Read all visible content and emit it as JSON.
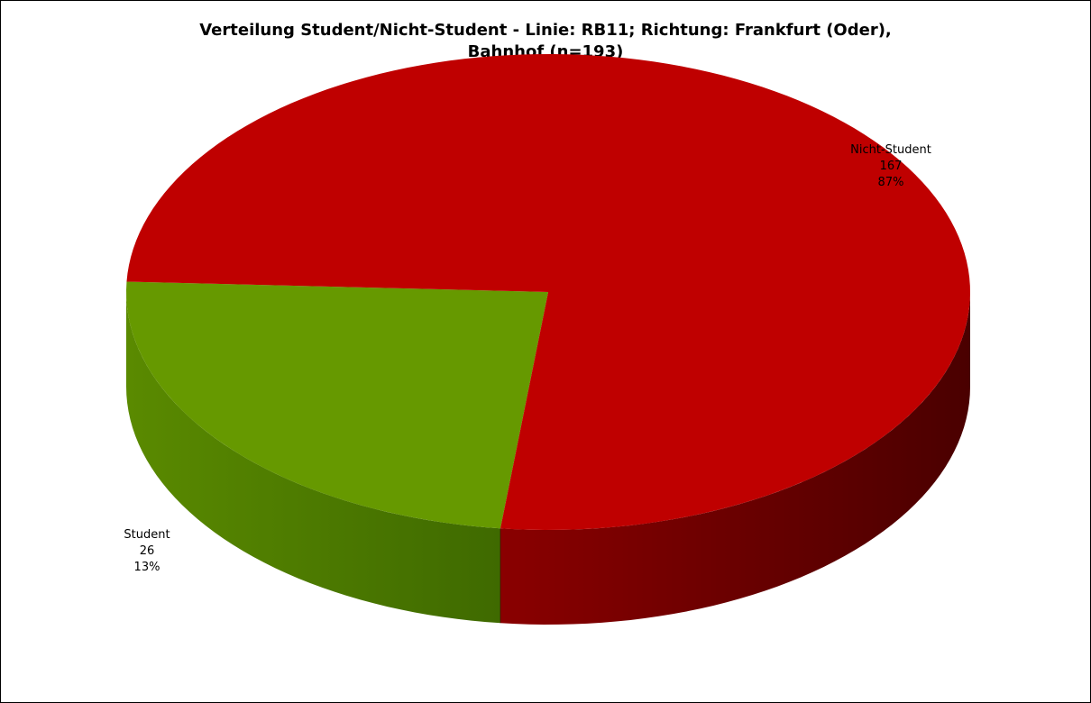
{
  "chart_data": {
    "type": "pie",
    "title_lines": [
      "Verteilung Student/Nicht-Student - Linie: RB11; Richtung: Frankfurt (Oder),",
      "Bahnhof (n=193)"
    ],
    "style": "3d",
    "legend": "none",
    "slices": [
      {
        "label": "Nicht-Student",
        "value": 167,
        "percent_label": "87%",
        "color": "#bf0000",
        "side_color_light": "#8a0000",
        "side_color_dark": "#4a0000"
      },
      {
        "label": "Student",
        "value": 26,
        "percent_label": "13%",
        "color": "#669900",
        "side_color_light": "#4d7a00",
        "side_color_dark": "#3a6400"
      }
    ],
    "total": 193
  }
}
